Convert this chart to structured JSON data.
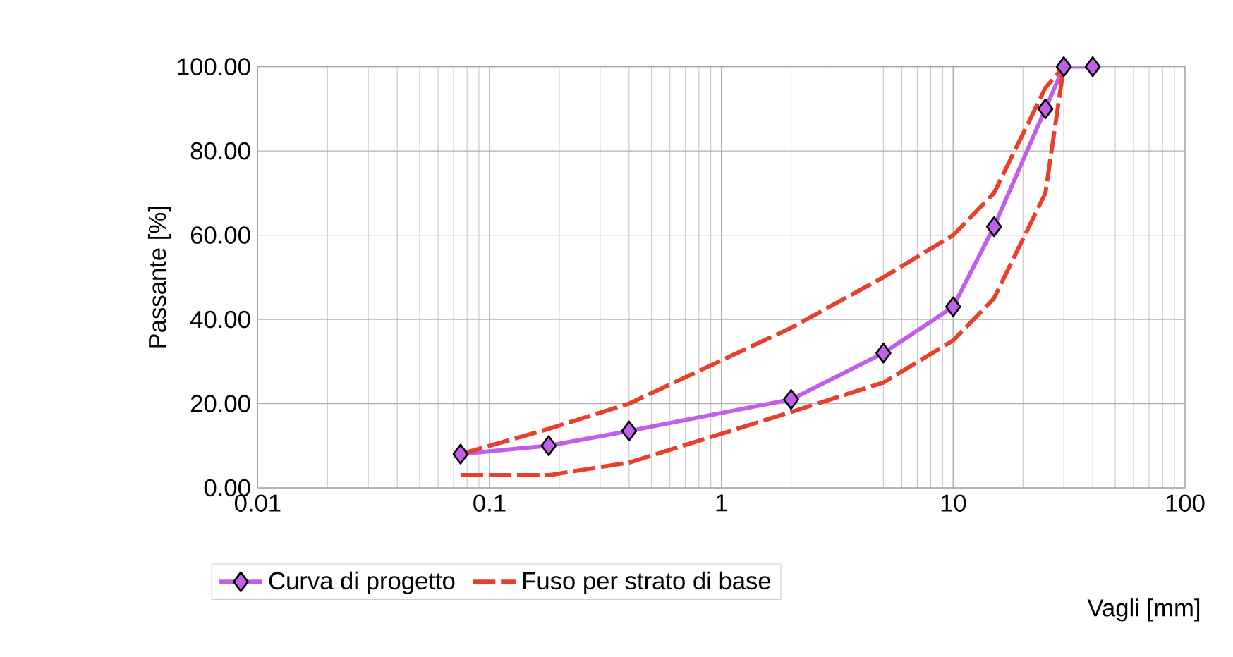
{
  "chart_data": {
    "type": "line",
    "xlabel": "Vagli [mm]",
    "ylabel": "Passante [%]",
    "log": "x",
    "grid": true,
    "legend": "bottom left",
    "xlim": [
      0.01,
      100
    ],
    "xticks": [
      0.01,
      0.1,
      1,
      10,
      100
    ],
    "ylim": [
      0,
      100
    ],
    "yticks": [
      {
        "value": 0,
        "label": "0.00"
      },
      {
        "value": 20,
        "label": "20.00"
      },
      {
        "value": 40,
        "label": "40.00"
      },
      {
        "value": 60,
        "label": "60.00"
      },
      {
        "value": 80,
        "label": "80.00"
      },
      {
        "value": 100,
        "label": "100.00"
      }
    ],
    "series": [
      {
        "name": "Curva di progetto",
        "color": "#c060e8",
        "marker": "diamond",
        "line_style": "solid",
        "x": [
          0.075,
          0.18,
          0.4,
          2,
          5,
          10,
          15,
          25,
          30,
          40
        ],
        "values": [
          8,
          10,
          13.5,
          21,
          32,
          43,
          62,
          90,
          100,
          100
        ]
      },
      {
        "name": "Fuso per strato di base",
        "color": "#e8402a",
        "marker": "none",
        "line_style": "dashed",
        "x": [
          0.075,
          0.18,
          0.4,
          2,
          5,
          10,
          15,
          25,
          30
        ],
        "values": [
          8,
          14,
          20,
          38,
          50,
          60,
          70,
          95,
          100
        ]
      },
      {
        "color": "#e8402a",
        "marker": "none",
        "line_style": "dashed",
        "x": [
          0.075,
          0.18,
          0.4,
          2,
          5,
          10,
          15,
          25,
          30
        ],
        "values": [
          3,
          3,
          6,
          18,
          25,
          35,
          45,
          70,
          100
        ]
      }
    ]
  }
}
